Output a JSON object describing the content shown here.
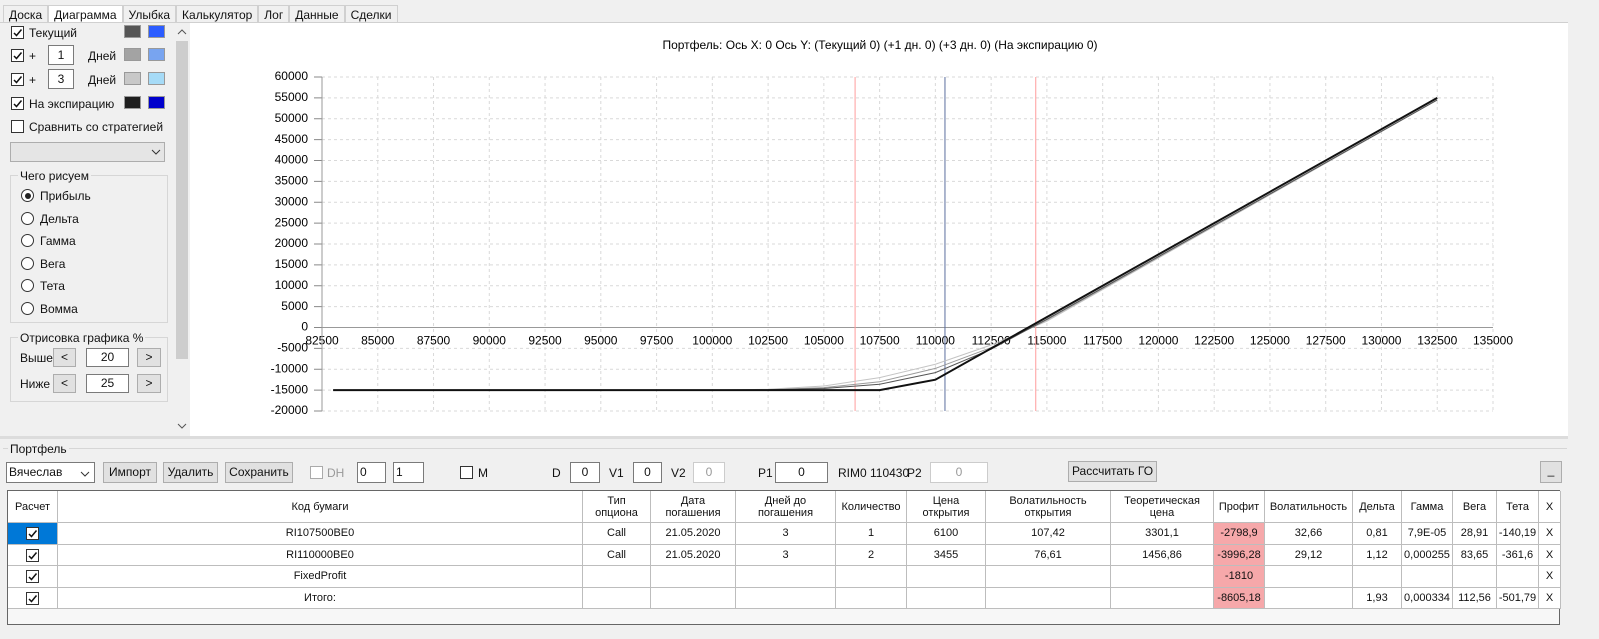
{
  "tabs": {
    "items": [
      "Доска",
      "Диаграмма",
      "Улыбка",
      "Калькулятор",
      "Лог",
      "Данные",
      "Сделки"
    ],
    "selected": 1
  },
  "settings": {
    "rows": [
      {
        "label": "Текущий",
        "checked": true,
        "colors": [
          "#555555",
          "#2b5cff"
        ]
      },
      {
        "prefix": "+",
        "days": "1",
        "unit": "Дней",
        "checked": true,
        "colors": [
          "#a3a3a3",
          "#78a4f0"
        ]
      },
      {
        "prefix": "+",
        "days": "3",
        "unit": "Дней",
        "checked": true,
        "colors": [
          "#c8c8c8",
          "#a6dbf7"
        ]
      },
      {
        "label": "На экспирацию",
        "checked": true,
        "colors": [
          "#1e1e1e",
          "#0000cc"
        ]
      }
    ],
    "compare": {
      "label": "Сравнить со стратегией",
      "checked": false
    }
  },
  "draw_group": {
    "title": "Чего рисуем",
    "options": [
      "Прибыль",
      "Дельта",
      "Гамма",
      "Вега",
      "Тета",
      "Вомма"
    ],
    "selected": 0
  },
  "plot_group": {
    "title": "Отрисовка графика %",
    "dec": "<",
    "inc": ">",
    "rows": [
      {
        "label": "Выше",
        "value": "20"
      },
      {
        "label": "Ниже",
        "value": "25"
      }
    ]
  },
  "chart_data": {
    "type": "line",
    "title": "Портфель: Ось X: 0 Ось Y:  (Текущий 0)  (+1 дн. 0)  (+3 дн. 0)  (На экспирацию 0)",
    "xlim": [
      82500,
      135000
    ],
    "xticks": [
      82500,
      85000,
      87500,
      90000,
      92500,
      95000,
      97500,
      100000,
      102500,
      105000,
      107500,
      110000,
      112500,
      115000,
      117500,
      120000,
      122500,
      125000,
      127500,
      130000,
      132500,
      135000
    ],
    "ylim": [
      -20000,
      60000
    ],
    "yticks": [
      -20000,
      -15000,
      -10000,
      -5000,
      0,
      5000,
      10000,
      15000,
      20000,
      25000,
      30000,
      35000,
      40000,
      45000,
      50000,
      55000,
      60000
    ],
    "grid": true,
    "series": [
      {
        "color": "#c4c4c4",
        "x": [
          83000,
          100000,
          102500,
          105000,
          107500,
          110000,
          112500,
          115000,
          132500
        ],
        "values": [
          -15000,
          -15000,
          -14800,
          -14000,
          -12000,
          -8800,
          -4200,
          1500,
          54500
        ]
      },
      {
        "color": "#9a9a9a",
        "x": [
          83000,
          100000,
          102500,
          105000,
          107500,
          110000,
          112500,
          115000,
          132500
        ],
        "values": [
          -15000,
          -15000,
          -14900,
          -14400,
          -13000,
          -9800,
          -4800,
          1800,
          54500
        ]
      },
      {
        "color": "#555555",
        "x": [
          83000,
          100000,
          102500,
          105000,
          107500,
          110000,
          112500,
          115000,
          132500
        ],
        "values": [
          -15000,
          -15000,
          -14950,
          -14600,
          -13600,
          -10800,
          -5200,
          2000,
          54500
        ]
      },
      {
        "color": "#111111",
        "x": [
          83000,
          107500,
          110000,
          132500
        ],
        "values": [
          -15000,
          -15000,
          -12500,
          55000
        ]
      }
    ],
    "vlines": [
      {
        "x": 106400,
        "color": "#ff9c9c"
      },
      {
        "x": 110430,
        "color": "#5b6f9e"
      },
      {
        "x": 114500,
        "color": "#ff9c9c"
      }
    ]
  },
  "portfolio": {
    "title": "Портфель",
    "account": "Вячеслав",
    "buttons": [
      "Импорт",
      "Удалить",
      "Сохранить"
    ],
    "dh": {
      "label": "DH",
      "checked": false,
      "spin": [
        "0",
        "1"
      ]
    },
    "m": {
      "label": "M",
      "checked": false
    },
    "fields": [
      {
        "label": "D",
        "value": "0"
      },
      {
        "label": "V1",
        "value": "0"
      },
      {
        "label": "V2",
        "value": "0"
      },
      {
        "label": "P1",
        "value": "0"
      }
    ],
    "instrument": "RIM0 110430",
    "p2": {
      "label": "P2",
      "value": "0"
    },
    "calc": "Рассчитать ГО",
    "minimize": "_"
  },
  "table": {
    "columns": [
      "Расчет",
      "Код бумаги",
      "Тип опциона",
      "Дата погашения",
      "Дней до погашения",
      "Количество",
      "Цена открытия",
      "Волатильность открытия",
      "Теоретическая цена",
      "Профит",
      "Волатильность",
      "Дельта",
      "Гамма",
      "Вега",
      "Тета",
      "X"
    ],
    "highlight": {
      "column": 9,
      "color": "#f6a8aa"
    },
    "selected_row": 0,
    "rows": [
      {
        "checked": true,
        "cells": [
          "RI107500BE0",
          "Call",
          "21.05.2020",
          "3",
          "1",
          "6100",
          "107,42",
          "3301,1",
          "-2798,9",
          "32,66",
          "0,81",
          "7,9E-05",
          "28,91",
          "-140,19",
          "X"
        ]
      },
      {
        "checked": true,
        "cells": [
          "RI110000BE0",
          "Call",
          "21.05.2020",
          "3",
          "2",
          "3455",
          "76,61",
          "1456,86",
          "-3996,28",
          "29,12",
          "1,12",
          "0,000255",
          "83,65",
          "-361,6",
          "X"
        ]
      },
      {
        "checked": true,
        "cells": [
          "FixedProfit",
          null,
          null,
          null,
          null,
          null,
          null,
          null,
          "-1810",
          null,
          null,
          null,
          null,
          null,
          "X"
        ]
      },
      {
        "checked": true,
        "cells": [
          "Итого:",
          null,
          null,
          null,
          null,
          null,
          null,
          null,
          "-8605,18",
          null,
          "1,93",
          "0,000334",
          "112,56",
          "-501,79",
          "X"
        ]
      }
    ]
  }
}
